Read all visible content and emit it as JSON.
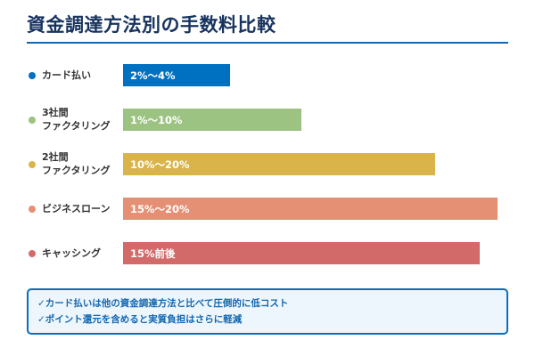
{
  "title": "資金調達方法別の手数料比較",
  "chart_data": {
    "type": "bar",
    "orientation": "horizontal",
    "categories": [
      "カード払い",
      "3社間ファクタリング",
      "2社間ファクタリング",
      "ビジネスローン",
      "キャッシング"
    ],
    "category_lines": [
      [
        "カード払い"
      ],
      [
        "3社間",
        "ファクタリング"
      ],
      [
        "2社間",
        "ファクタリング"
      ],
      [
        "ビジネスローン"
      ],
      [
        "キャッシング"
      ]
    ],
    "data_labels": [
      "2%〜4%",
      "1%〜10%",
      "10%〜20%",
      "15%〜20%",
      "15%前後"
    ],
    "relative_length": [
      0.286,
      0.476,
      0.833,
      1.0,
      0.952
    ],
    "colors": [
      "#0070c0",
      "#9dc383",
      "#d9b44a",
      "#e59075",
      "#d36a6a"
    ],
    "grid": false
  },
  "notes": [
    "✓カード払いは他の資金調達方法と比べて圧倒的に低コスト",
    "✓ポイント還元を含めると実質負担はさらに軽減"
  ]
}
